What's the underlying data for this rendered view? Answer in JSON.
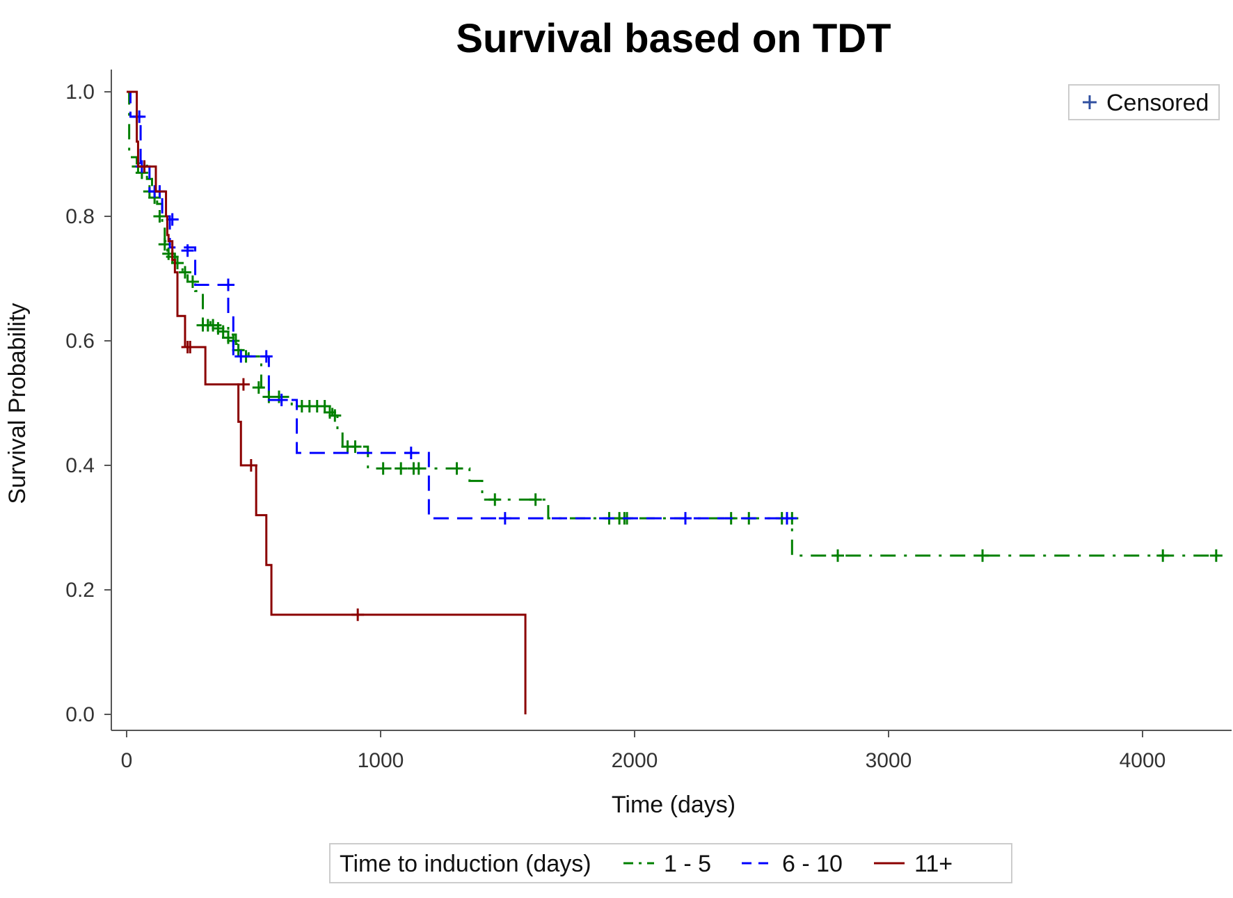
{
  "chart_data": {
    "type": "line",
    "title": "Survival based on TDT",
    "xlabel": "Time (days)",
    "ylabel": "Survival Probability",
    "xlim": [
      0,
      4350
    ],
    "ylim": [
      0,
      1
    ],
    "x_ticks": [
      "0",
      "1000",
      "2000",
      "3000",
      "4000"
    ],
    "y_ticks": [
      "0.0",
      "0.2",
      "0.4",
      "0.6",
      "0.8",
      "1.0"
    ],
    "legend_title": "Time to induction (days)",
    "legend_position": "bottom",
    "censored_legend": {
      "label": "Censored",
      "position": "top-right"
    },
    "grid": false,
    "series": [
      {
        "name": "1 - 5",
        "color": "#008000",
        "dash": "dash-dot",
        "steps": [
          [
            0,
            1.0
          ],
          [
            10,
            0.895
          ],
          [
            40,
            0.885
          ],
          [
            80,
            0.86
          ],
          [
            100,
            0.84
          ],
          [
            120,
            0.82
          ],
          [
            140,
            0.79
          ],
          [
            150,
            0.76
          ],
          [
            160,
            0.74
          ],
          [
            190,
            0.725
          ],
          [
            220,
            0.71
          ],
          [
            240,
            0.695
          ],
          [
            270,
            0.68
          ],
          [
            300,
            0.63
          ],
          [
            330,
            0.625
          ],
          [
            400,
            0.61
          ],
          [
            430,
            0.595
          ],
          [
            450,
            0.58
          ],
          [
            480,
            0.575
          ],
          [
            530,
            0.525
          ],
          [
            560,
            0.51
          ],
          [
            650,
            0.495
          ],
          [
            810,
            0.48
          ],
          [
            830,
            0.455
          ],
          [
            850,
            0.43
          ],
          [
            950,
            0.395
          ],
          [
            1350,
            0.375
          ],
          [
            1400,
            0.345
          ],
          [
            1660,
            0.315
          ],
          [
            2620,
            0.255
          ],
          [
            4300,
            0.255
          ]
        ],
        "censored_x": [
          45,
          60,
          90,
          110,
          130,
          150,
          165,
          180,
          200,
          230,
          260,
          300,
          320,
          340,
          360,
          380,
          400,
          420,
          440,
          470,
          520,
          560,
          600,
          690,
          720,
          750,
          780,
          800,
          820,
          870,
          900,
          1010,
          1080,
          1130,
          1150,
          1300,
          1450,
          1610,
          1900,
          1940,
          1960,
          1970,
          2380,
          2450,
          2580,
          2620,
          2800,
          3370,
          4080,
          4290
        ],
        "censored_y": [
          0.88,
          0.87,
          0.84,
          0.83,
          0.8,
          0.755,
          0.74,
          0.735,
          0.725,
          0.71,
          0.695,
          0.625,
          0.625,
          0.625,
          0.62,
          0.615,
          0.605,
          0.6,
          0.585,
          0.575,
          0.525,
          0.51,
          0.51,
          0.495,
          0.495,
          0.495,
          0.495,
          0.485,
          0.48,
          0.43,
          0.43,
          0.395,
          0.395,
          0.395,
          0.395,
          0.395,
          0.345,
          0.345,
          0.315,
          0.315,
          0.315,
          0.315,
          0.315,
          0.315,
          0.315,
          0.315,
          0.255,
          0.255,
          0.255,
          0.255
        ]
      },
      {
        "name": "6 - 10",
        "color": "#0000ff",
        "dash": "dash",
        "steps": [
          [
            0,
            1.0
          ],
          [
            15,
            0.96
          ],
          [
            55,
            0.88
          ],
          [
            90,
            0.84
          ],
          [
            140,
            0.8
          ],
          [
            170,
            0.75
          ],
          [
            270,
            0.69
          ],
          [
            400,
            0.64
          ],
          [
            420,
            0.575
          ],
          [
            560,
            0.505
          ],
          [
            670,
            0.42
          ],
          [
            1190,
            0.315
          ],
          [
            2640,
            0.315
          ]
        ],
        "censored_x": [
          40,
          50,
          60,
          110,
          130,
          180,
          240,
          400,
          450,
          550,
          610,
          1120,
          1490,
          2200,
          2600
        ],
        "censored_y": [
          0.96,
          0.96,
          0.88,
          0.84,
          0.84,
          0.795,
          0.745,
          0.69,
          0.575,
          0.575,
          0.505,
          0.42,
          0.315,
          0.315,
          0.315
        ]
      },
      {
        "name": "11+",
        "color": "#8b0000",
        "dash": "solid",
        "steps": [
          [
            0,
            1.0
          ],
          [
            30,
            1.0
          ],
          [
            40,
            0.92
          ],
          [
            45,
            0.88
          ],
          [
            115,
            0.84
          ],
          [
            155,
            0.8
          ],
          [
            160,
            0.77
          ],
          [
            165,
            0.76
          ],
          [
            180,
            0.73
          ],
          [
            190,
            0.71
          ],
          [
            200,
            0.64
          ],
          [
            230,
            0.59
          ],
          [
            310,
            0.53
          ],
          [
            430,
            0.53
          ],
          [
            440,
            0.47
          ],
          [
            450,
            0.4
          ],
          [
            500,
            0.4
          ],
          [
            510,
            0.32
          ],
          [
            550,
            0.24
          ],
          [
            570,
            0.16
          ],
          [
            1570,
            0.16
          ],
          [
            1570,
            0.0
          ]
        ],
        "censored_x": [
          70,
          240,
          250,
          460,
          490,
          910
        ],
        "censored_y": [
          0.88,
          0.59,
          0.59,
          0.53,
          0.4,
          0.16
        ]
      }
    ]
  }
}
